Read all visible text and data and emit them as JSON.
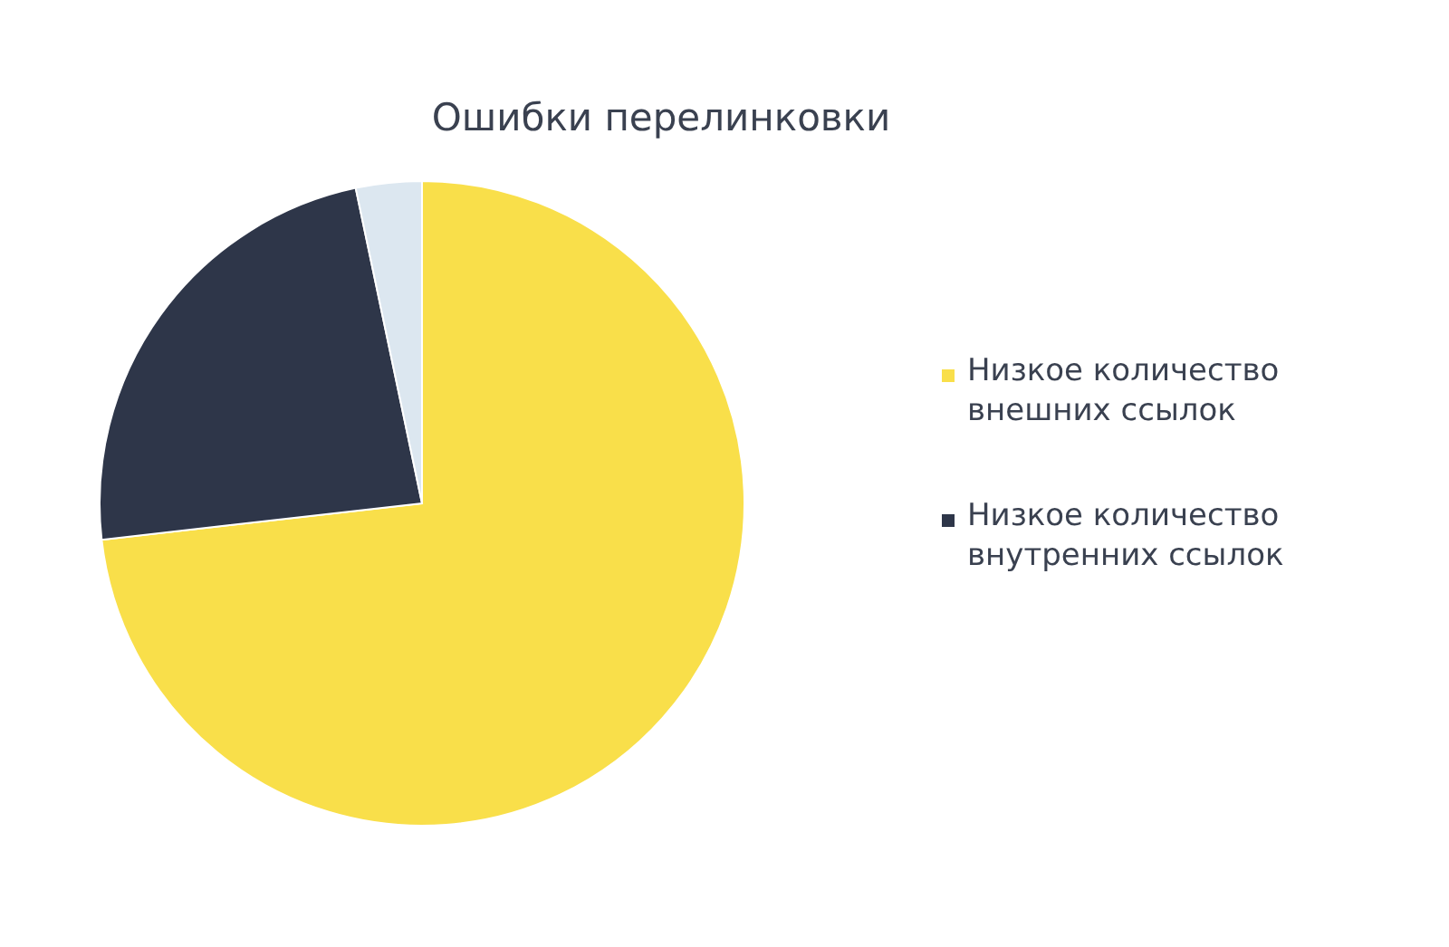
{
  "chart_data": {
    "type": "pie",
    "title": "Ошибки перелинковки",
    "categories": [
      "Низкое количество внешних ссылок",
      "Низкое количество внутренних ссылок",
      null
    ],
    "values": [
      73.2,
      23.5,
      3.3
    ],
    "colors": [
      "#f9df4a",
      "#2e3649",
      "#dce7f0"
    ],
    "legend": "right"
  }
}
